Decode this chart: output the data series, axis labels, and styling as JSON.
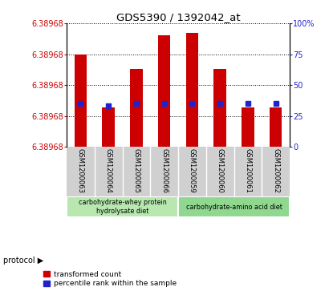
{
  "title": "GDS5390 / 1392042_at",
  "samples": [
    "GSM1200063",
    "GSM1200064",
    "GSM1200065",
    "GSM1200066",
    "GSM1200059",
    "GSM1200060",
    "GSM1200061",
    "GSM1200062"
  ],
  "red_bar_top_pct": [
    75,
    32,
    63,
    90,
    92,
    63,
    32,
    32
  ],
  "red_bar_bottom_pct": [
    0,
    0,
    0,
    0,
    0,
    0,
    0,
    0
  ],
  "blue_percentiles": [
    35,
    33,
    35,
    35,
    35,
    35,
    35,
    35
  ],
  "y_ticks_left_labels": [
    "6.38968",
    "6.38968",
    "6.38968",
    "6.38968",
    "6.38968"
  ],
  "y_ticks_right": [
    0,
    25,
    50,
    75,
    100
  ],
  "protocol_groups": [
    {
      "label": "carbohydrate-whey protein\nhydrolysate diet",
      "start": 0,
      "end": 4,
      "color": "#b8e8b0"
    },
    {
      "label": "carbohydrate-amino acid diet",
      "start": 4,
      "end": 8,
      "color": "#90d890"
    }
  ],
  "bar_color_red": "#cc0000",
  "bar_color_blue": "#2222cc",
  "label_color_left": "#cc0000",
  "label_color_right": "#2222cc",
  "xlabel_area_color": "#d0d0d0",
  "legend_red_label": "transformed count",
  "legend_blue_label": "percentile rank within the sample",
  "protocol_label": "protocol",
  "bar_width": 0.45
}
